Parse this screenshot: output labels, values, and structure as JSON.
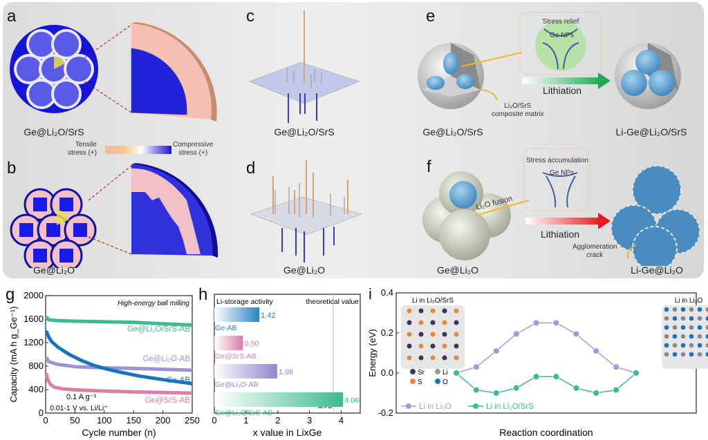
{
  "panels": {
    "a": {
      "letter": "a",
      "caption": "Ge@Li₂O/SrS"
    },
    "b": {
      "letter": "b",
      "caption": "Ge@Li₂O"
    },
    "colorbar": {
      "left_label": "Tensile\nstress (+)",
      "right_label": "Compressive\nstress (+)",
      "colors": [
        "#f3b8a8",
        "#f5c98a",
        "#ffffff",
        "#1818d8"
      ]
    },
    "c": {
      "letter": "c",
      "caption": "Ge@Li₂O/SrS"
    },
    "d": {
      "letter": "d",
      "caption": "Ge@Li₂O"
    },
    "e": {
      "letter": "e",
      "box_title": "Stress relief",
      "box_label": "Ge NPs",
      "arrow_label": "Lithiation",
      "matrix_label": "Li₂O/SrS\ncomposite matrix",
      "left_caption": "Ge@Li₂O/SrS",
      "right_caption": "Li-Ge@Li₂O/SrS",
      "arrow_color": "#1fae55"
    },
    "f": {
      "letter": "f",
      "box_title": "Stress accumulation",
      "box_label": "Ge NPs",
      "fusion_label": "Li₂O fusion",
      "arrow_label": "Lithiation",
      "crack_label": "Agglomeration\ncrack",
      "left_caption": "Ge@Li₂O",
      "right_caption": "Li-Ge@Li₂O",
      "arrow_color": "#e8161e"
    }
  },
  "chart_data": [
    {
      "id": "g",
      "letter": "g",
      "type": "line",
      "title": "High-energy ball milling",
      "xlabel": "Cycle number (n)",
      "ylabel": "Capacity (mA h g_Ge⁻¹)",
      "xlim": [
        0,
        250
      ],
      "ylim": [
        0,
        2000
      ],
      "xticks": [
        0,
        50,
        100,
        150,
        200,
        250
      ],
      "yticks": [
        0,
        400,
        800,
        1200,
        1600,
        2000
      ],
      "annotations": [
        "0.1 A g⁻¹",
        "0.01-1 V vs. Li/Li⁺"
      ],
      "series": [
        {
          "name": "Ge@Li₂O/SrS-AB",
          "color": "#3dbb8f",
          "x": [
            1,
            5,
            20,
            50,
            100,
            150,
            200,
            250
          ],
          "y": [
            1640,
            1590,
            1575,
            1565,
            1555,
            1545,
            1520,
            1500
          ]
        },
        {
          "name": "Ge@Li₂O-AB",
          "color": "#9b93d6",
          "x": [
            1,
            5,
            20,
            50,
            100,
            150,
            200,
            250
          ],
          "y": [
            950,
            880,
            830,
            790,
            770,
            760,
            745,
            730
          ]
        },
        {
          "name": "Ge-AB",
          "color": "#1a75b8",
          "x": [
            1,
            5,
            10,
            20,
            40,
            60,
            80,
            100,
            130,
            160,
            200,
            250
          ],
          "y": [
            1400,
            1300,
            1220,
            1130,
            1000,
            900,
            820,
            760,
            690,
            630,
            570,
            500
          ]
        },
        {
          "name": "Ge@SrS-AB",
          "color": "#d97ea6",
          "x": [
            1,
            3,
            8,
            15,
            30,
            50,
            100,
            150,
            200,
            250
          ],
          "y": [
            680,
            580,
            490,
            440,
            410,
            395,
            375,
            360,
            350,
            340
          ]
        }
      ]
    },
    {
      "id": "h",
      "letter": "h",
      "type": "bar",
      "orientation": "horizontal",
      "xlabel": "x value in LixGe",
      "title": "Li-storage activity",
      "xlim": [
        0,
        4.6
      ],
      "xticks": [
        0,
        1,
        2,
        3,
        4
      ],
      "reference": {
        "label": "theoretical value",
        "value": 3.75,
        "value_label": "3.75"
      },
      "categories": [
        "Ge-AB",
        "Ge@SrS-AB",
        "Ge@Li₂O-AB",
        "Ge@Li₂O/SrS-AB"
      ],
      "values": [
        1.42,
        0.9,
        1.98,
        4.06
      ],
      "value_labels": [
        "1.42",
        "0.90",
        "1.98",
        "4.06"
      ],
      "colors": [
        "#2b84c4",
        "#d97ea6",
        "#8f86cf",
        "#3dbb8f"
      ]
    },
    {
      "id": "i",
      "letter": "i",
      "type": "line",
      "xlabel": "Reaction coordination",
      "ylabel": "Energy (eV)",
      "ylim": [
        -0.2,
        0.4
      ],
      "yticks": [
        -0.2,
        0.0,
        0.2,
        0.4
      ],
      "ytick_labels": [
        "-0.2",
        "0.0",
        "0.2",
        "0.4"
      ],
      "inset_left": {
        "title": "Li in Li₂O/SrS",
        "legend": [
          "Sr",
          "Li",
          "S",
          "O"
        ]
      },
      "inset_right": {
        "title": "Li in Li₂O"
      },
      "axes_labels": [
        "b",
        "a"
      ],
      "series": [
        {
          "name": "Li in Li₂O",
          "color": "#a59ad8",
          "y": [
            0,
            0.03,
            0.11,
            0.195,
            0.25,
            0.25,
            0.195,
            0.11,
            0.03,
            0
          ]
        },
        {
          "name": "Li in Li₂O/SrS",
          "color": "#3dbb8f",
          "y": [
            0,
            -0.085,
            -0.1,
            -0.075,
            -0.018,
            -0.018,
            -0.075,
            -0.1,
            -0.085,
            0
          ]
        }
      ]
    }
  ]
}
